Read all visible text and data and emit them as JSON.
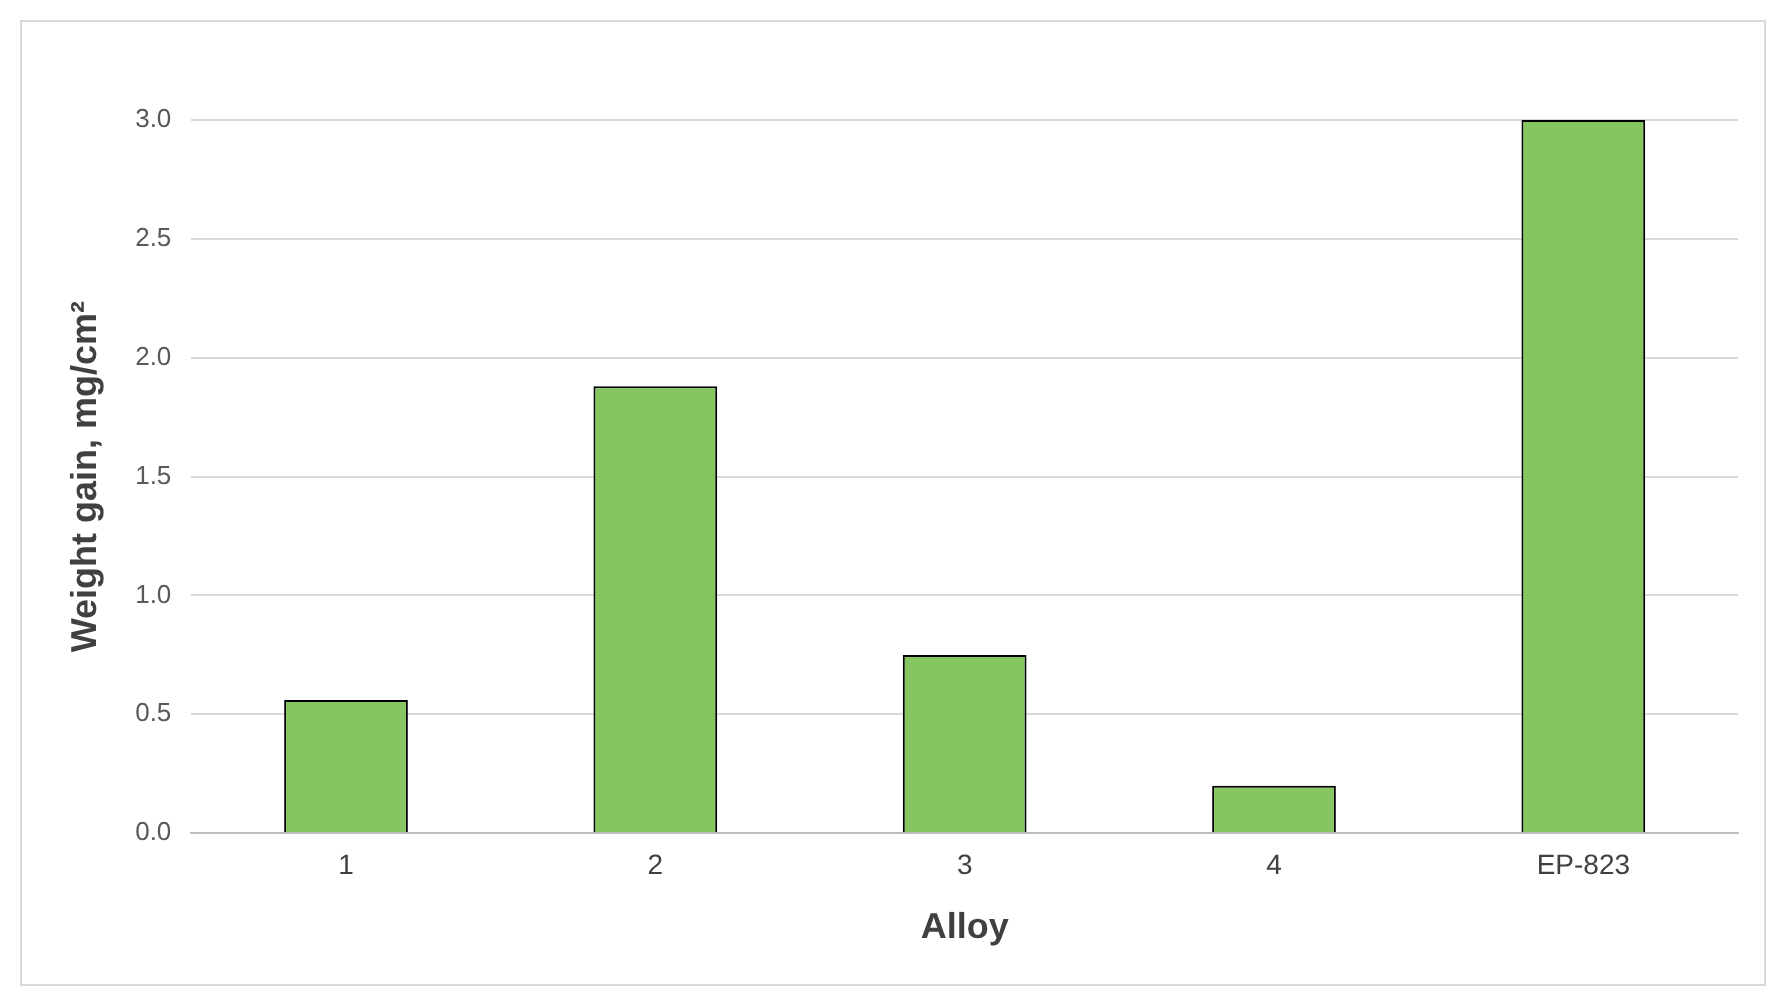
{
  "chart_data": {
    "type": "bar",
    "xlabel": "Alloy",
    "ylabel": "Weight gain, mg/cm²",
    "categories": [
      "1",
      "2",
      "3",
      "4",
      "EP-823"
    ],
    "values": [
      0.56,
      1.88,
      0.75,
      0.2,
      3.0
    ],
    "color": "#85c660",
    "ylim": [
      0,
      3.0
    ],
    "yticks": [
      {
        "value": 0,
        "label": "0.0"
      },
      {
        "value": 0.5,
        "label": "0.5"
      },
      {
        "value": 1,
        "label": "1.0"
      },
      {
        "value": 1.5,
        "label": "1.5"
      },
      {
        "value": 2,
        "label": "2.0"
      },
      {
        "value": 2.5,
        "label": "2.5"
      },
      {
        "value": 3,
        "label": "3.0"
      }
    ],
    "grid": "y",
    "legend": false
  }
}
